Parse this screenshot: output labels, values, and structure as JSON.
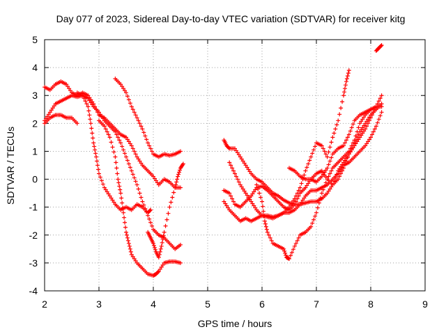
{
  "chart_data": {
    "type": "scatter",
    "title": "Day 077 of 2023, Sidereal Day-to-day VTEC variation (SDTVAR) for receiver kitg",
    "xlabel": "GPS time / hours",
    "ylabel": "SDTVAR / TECUs",
    "xlim": [
      2,
      9
    ],
    "ylim": [
      -4,
      5
    ],
    "xticks": [
      2,
      3,
      4,
      5,
      6,
      7,
      8,
      9
    ],
    "yticks": [
      -4,
      -3,
      -2,
      -1,
      0,
      1,
      2,
      3,
      4,
      5
    ],
    "grid": true,
    "marker": "+",
    "color": "#ff0000",
    "series": [
      {
        "points": [
          [
            2.0,
            2.0
          ],
          [
            2.1,
            2.2
          ],
          [
            2.2,
            2.3
          ],
          [
            2.3,
            2.3
          ],
          [
            2.4,
            2.2
          ],
          [
            2.5,
            2.2
          ],
          [
            2.6,
            2.0
          ]
        ]
      },
      {
        "points": [
          [
            2.0,
            3.3
          ],
          [
            2.1,
            3.2
          ],
          [
            2.2,
            3.4
          ],
          [
            2.3,
            3.5
          ],
          [
            2.4,
            3.4
          ],
          [
            2.5,
            3.1
          ],
          [
            2.6,
            3.0
          ],
          [
            2.7,
            3.1
          ],
          [
            2.8,
            3.0
          ],
          [
            2.9,
            2.7
          ],
          [
            3.0,
            2.3
          ],
          [
            3.1,
            2.2
          ],
          [
            3.2,
            2.0
          ],
          [
            3.3,
            1.8
          ],
          [
            3.4,
            1.6
          ],
          [
            3.5,
            1.5
          ],
          [
            3.6,
            1.2
          ],
          [
            3.7,
            0.8
          ],
          [
            3.8,
            0.5
          ],
          [
            3.9,
            0.3
          ],
          [
            4.0,
            0.1
          ],
          [
            4.1,
            -0.2
          ],
          [
            4.2,
            0.0
          ],
          [
            4.3,
            -0.1
          ],
          [
            4.4,
            -0.3
          ],
          [
            4.5,
            -0.3
          ]
        ]
      },
      {
        "points": [
          [
            2.0,
            2.1
          ],
          [
            2.1,
            2.4
          ],
          [
            2.2,
            2.7
          ],
          [
            2.3,
            2.8
          ],
          [
            2.4,
            2.9
          ],
          [
            2.5,
            3.0
          ],
          [
            2.6,
            2.95
          ],
          [
            2.7,
            3.0
          ],
          [
            2.8,
            2.9
          ],
          [
            2.9,
            2.6
          ],
          [
            3.0,
            2.4
          ],
          [
            3.1,
            2.1
          ],
          [
            3.2,
            1.9
          ],
          [
            3.3,
            1.7
          ],
          [
            3.4,
            1.3
          ],
          [
            3.5,
            0.8
          ],
          [
            3.6,
            0.3
          ],
          [
            3.7,
            -0.2
          ],
          [
            3.8,
            -0.8
          ],
          [
            3.9,
            -1.3
          ],
          [
            4.0,
            -1.8
          ],
          [
            4.1,
            -2.0
          ],
          [
            4.2,
            -2.1
          ],
          [
            4.3,
            -2.3
          ],
          [
            4.4,
            -2.5
          ],
          [
            4.5,
            -2.35
          ]
        ]
      },
      {
        "points": [
          [
            2.6,
            3.1
          ],
          [
            2.7,
            3.0
          ],
          [
            2.8,
            2.6
          ],
          [
            2.85,
            2.0
          ],
          [
            2.9,
            1.3
          ],
          [
            2.95,
            0.8
          ],
          [
            3.0,
            0.2
          ],
          [
            3.1,
            -0.3
          ],
          [
            3.2,
            -0.6
          ],
          [
            3.3,
            -0.9
          ],
          [
            3.4,
            -1.1
          ],
          [
            3.5,
            -1.0
          ],
          [
            3.6,
            -1.1
          ],
          [
            3.7,
            -0.9
          ],
          [
            3.8,
            -1.0
          ],
          [
            3.9,
            -1.2
          ],
          [
            3.95,
            -1.1
          ]
        ]
      },
      {
        "points": [
          [
            3.0,
            2.1
          ],
          [
            3.1,
            1.9
          ],
          [
            3.2,
            1.5
          ],
          [
            3.3,
            0.8
          ],
          [
            3.35,
            0.0
          ],
          [
            3.4,
            -0.5
          ],
          [
            3.45,
            -1.2
          ],
          [
            3.5,
            -1.9
          ],
          [
            3.55,
            -2.3
          ],
          [
            3.6,
            -2.7
          ],
          [
            3.7,
            -3.0
          ],
          [
            3.8,
            -3.2
          ],
          [
            3.9,
            -3.4
          ],
          [
            4.0,
            -3.45
          ],
          [
            4.05,
            -3.4
          ],
          [
            4.1,
            -3.3
          ],
          [
            4.2,
            -3.0
          ],
          [
            4.3,
            -2.95
          ],
          [
            4.4,
            -2.95
          ],
          [
            4.5,
            -3.0
          ]
        ]
      },
      {
        "points": [
          [
            3.3,
            3.6
          ],
          [
            3.4,
            3.4
          ],
          [
            3.5,
            3.1
          ],
          [
            3.6,
            2.6
          ],
          [
            3.7,
            2.2
          ],
          [
            3.8,
            1.8
          ],
          [
            3.9,
            1.3
          ],
          [
            4.0,
            0.9
          ],
          [
            4.1,
            0.8
          ],
          [
            4.2,
            0.9
          ],
          [
            4.3,
            0.85
          ],
          [
            4.4,
            0.9
          ],
          [
            4.5,
            1.0
          ]
        ]
      },
      {
        "points": [
          [
            3.9,
            -1.9
          ],
          [
            3.95,
            -2.1
          ],
          [
            4.0,
            -2.3
          ],
          [
            4.05,
            -2.6
          ],
          [
            4.1,
            -2.8
          ],
          [
            4.15,
            -2.4
          ],
          [
            4.2,
            -1.9
          ],
          [
            4.3,
            -1.0
          ],
          [
            4.4,
            -0.3
          ],
          [
            4.45,
            0.1
          ],
          [
            4.5,
            0.4
          ],
          [
            4.55,
            0.55
          ]
        ]
      },
      {
        "points": [
          [
            5.3,
            1.4
          ],
          [
            5.35,
            1.2
          ],
          [
            5.4,
            1.1
          ],
          [
            5.5,
            1.1
          ],
          [
            5.6,
            0.8
          ],
          [
            5.7,
            0.5
          ],
          [
            5.8,
            0.2
          ],
          [
            5.9,
            0.0
          ],
          [
            6.0,
            -0.1
          ],
          [
            6.1,
            -0.3
          ],
          [
            6.2,
            -0.5
          ],
          [
            6.3,
            -0.6
          ],
          [
            6.4,
            -0.75
          ],
          [
            6.5,
            -0.85
          ],
          [
            6.6,
            -0.9
          ],
          [
            6.7,
            -0.9
          ],
          [
            6.8,
            -0.85
          ],
          [
            6.9,
            -0.8
          ],
          [
            7.0,
            -0.8
          ],
          [
            7.1,
            -0.7
          ],
          [
            7.2,
            -0.5
          ],
          [
            7.3,
            -0.2
          ],
          [
            7.4,
            0.3
          ],
          [
            7.5,
            0.6
          ],
          [
            7.6,
            0.9
          ],
          [
            7.7,
            1.3
          ],
          [
            7.8,
            1.7
          ],
          [
            7.9,
            2.0
          ],
          [
            8.0,
            2.3
          ],
          [
            8.1,
            2.5
          ],
          [
            8.2,
            2.7
          ]
        ]
      },
      {
        "points": [
          [
            5.3,
            -0.4
          ],
          [
            5.4,
            -0.5
          ],
          [
            5.5,
            -0.9
          ],
          [
            5.6,
            -1.0
          ],
          [
            5.7,
            -0.8
          ],
          [
            5.8,
            -0.6
          ],
          [
            5.9,
            -0.3
          ],
          [
            6.0,
            -0.25
          ],
          [
            6.1,
            -0.4
          ],
          [
            6.2,
            -0.6
          ],
          [
            6.3,
            -0.8
          ],
          [
            6.4,
            -1.0
          ],
          [
            6.5,
            -1.1
          ],
          [
            6.6,
            -0.9
          ],
          [
            6.7,
            -0.5
          ],
          [
            6.8,
            -0.3
          ],
          [
            6.9,
            0.0
          ],
          [
            7.0,
            0.2
          ],
          [
            7.1,
            0.3
          ],
          [
            7.2,
            0.0
          ],
          [
            7.3,
            -0.2
          ],
          [
            7.4,
            0.0
          ],
          [
            7.5,
            0.4
          ],
          [
            7.6,
            0.9
          ],
          [
            7.7,
            1.2
          ],
          [
            7.8,
            1.5
          ],
          [
            7.9,
            1.8
          ],
          [
            8.0,
            2.2
          ],
          [
            8.1,
            2.6
          ],
          [
            8.2,
            3.0
          ]
        ]
      },
      {
        "points": [
          [
            5.4,
            0.6
          ],
          [
            5.5,
            0.2
          ],
          [
            5.6,
            -0.2
          ],
          [
            5.7,
            -0.5
          ],
          [
            5.8,
            -0.8
          ],
          [
            5.9,
            -1.1
          ],
          [
            6.0,
            -1.3
          ],
          [
            6.1,
            -1.35
          ],
          [
            6.2,
            -1.4
          ],
          [
            6.3,
            -1.3
          ],
          [
            6.4,
            -1.2
          ],
          [
            6.5,
            -1.0
          ],
          [
            6.6,
            -0.7
          ],
          [
            6.7,
            -0.3
          ],
          [
            6.8,
            0.3
          ],
          [
            6.9,
            0.8
          ],
          [
            7.0,
            1.3
          ],
          [
            7.1,
            1.2
          ],
          [
            7.2,
            0.8
          ],
          [
            7.3,
            1.5
          ],
          [
            7.4,
            2.1
          ],
          [
            7.5,
            3.0
          ],
          [
            7.55,
            3.5
          ],
          [
            7.6,
            3.9
          ]
        ]
      },
      {
        "points": [
          [
            5.3,
            -0.8
          ],
          [
            5.4,
            -1.1
          ],
          [
            5.5,
            -1.3
          ],
          [
            5.6,
            -1.5
          ],
          [
            5.7,
            -1.4
          ],
          [
            5.8,
            -1.5
          ],
          [
            5.9,
            -1.4
          ],
          [
            6.0,
            -1.3
          ],
          [
            6.1,
            -1.3
          ],
          [
            6.2,
            -1.35
          ],
          [
            6.3,
            -1.3
          ],
          [
            6.4,
            -1.2
          ],
          [
            6.5,
            -1.2
          ],
          [
            6.6,
            -1.1
          ],
          [
            6.7,
            -0.9
          ],
          [
            6.8,
            -0.6
          ],
          [
            6.9,
            -0.4
          ],
          [
            7.0,
            -0.4
          ],
          [
            7.1,
            -0.3
          ],
          [
            7.2,
            -0.2
          ],
          [
            7.3,
            0.0
          ],
          [
            7.4,
            0.2
          ],
          [
            7.5,
            0.5
          ],
          [
            7.6,
            0.6
          ],
          [
            7.7,
            0.8
          ],
          [
            7.8,
            1.0
          ],
          [
            7.9,
            1.2
          ],
          [
            8.0,
            1.5
          ],
          [
            8.1,
            1.9
          ],
          [
            8.2,
            2.4
          ]
        ]
      },
      {
        "points": [
          [
            5.9,
            -0.2
          ],
          [
            6.0,
            -0.8
          ],
          [
            6.05,
            -1.5
          ],
          [
            6.1,
            -1.9
          ],
          [
            6.2,
            -2.3
          ],
          [
            6.3,
            -2.4
          ],
          [
            6.4,
            -2.5
          ],
          [
            6.45,
            -2.8
          ],
          [
            6.5,
            -2.85
          ],
          [
            6.6,
            -2.4
          ],
          [
            6.7,
            -2.0
          ],
          [
            6.8,
            -1.9
          ],
          [
            6.9,
            -1.7
          ],
          [
            7.0,
            -1.2
          ],
          [
            7.1,
            -0.5
          ],
          [
            7.2,
            0.0
          ],
          [
            7.3,
            0.4
          ],
          [
            7.4,
            0.6
          ],
          [
            7.5,
            0.8
          ],
          [
            7.6,
            1.0
          ],
          [
            7.7,
            1.4
          ],
          [
            7.8,
            2.0
          ],
          [
            7.9,
            2.3
          ],
          [
            8.0,
            2.5
          ],
          [
            8.1,
            2.6
          ],
          [
            8.2,
            2.6
          ]
        ]
      },
      {
        "points": [
          [
            6.5,
            0.4
          ],
          [
            6.6,
            0.3
          ],
          [
            6.7,
            0.1
          ],
          [
            6.8,
            0.0
          ],
          [
            6.9,
            0.0
          ],
          [
            7.0,
            -0.1
          ],
          [
            7.1,
            0.1
          ],
          [
            7.2,
            0.4
          ],
          [
            7.3,
            0.9
          ],
          [
            7.4,
            1.1
          ],
          [
            7.5,
            1.2
          ],
          [
            7.6,
            1.6
          ],
          [
            7.7,
            2.1
          ],
          [
            7.8,
            2.3
          ],
          [
            7.9,
            2.4
          ],
          [
            8.0,
            2.5
          ]
        ]
      },
      {
        "points": [
          [
            8.1,
            4.6
          ],
          [
            8.15,
            4.7
          ],
          [
            8.2,
            4.8
          ]
        ]
      }
    ]
  }
}
